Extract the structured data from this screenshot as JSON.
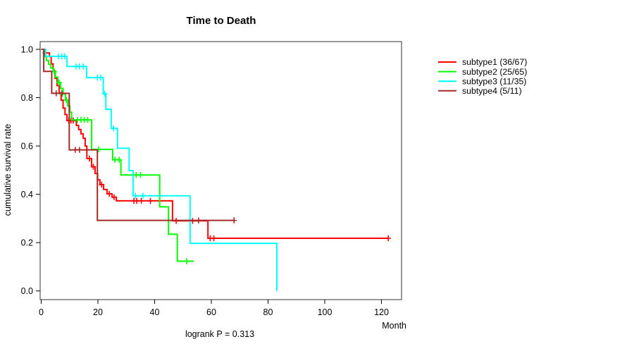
{
  "chart_data": {
    "type": "line",
    "variant": "kaplan-meier-step",
    "title": "Time to Death",
    "xlabel": "Month",
    "ylabel": "cumulative survival rate",
    "footer": "logrank P = 0.313",
    "x_ticks": [
      0,
      20,
      40,
      60,
      80,
      100,
      120
    ],
    "y_ticks": [
      "0.0",
      "0.2",
      "0.4",
      "0.6",
      "0.8",
      "1.0"
    ],
    "xlim": [
      0,
      127
    ],
    "ylim": [
      0,
      1
    ],
    "grid": false,
    "legend_position": "right-outside",
    "series": [
      {
        "name": "subtype1 (36/67)",
        "color": "#FF0000",
        "steps": [
          [
            0,
            1.0
          ],
          [
            1,
            0.985
          ],
          [
            2.9,
            0.97
          ],
          [
            3.5,
            0.94
          ],
          [
            4.2,
            0.91
          ],
          [
            4.9,
            0.88
          ],
          [
            5.6,
            0.85
          ],
          [
            6.3,
            0.82
          ],
          [
            7,
            0.79
          ],
          [
            7.7,
            0.757
          ],
          [
            8.4,
            0.73
          ],
          [
            9.1,
            0.705
          ],
          [
            12.4,
            0.685
          ],
          [
            13.2,
            0.668
          ],
          [
            14,
            0.65
          ],
          [
            14.8,
            0.632
          ],
          [
            15.5,
            0.6
          ],
          [
            16.1,
            0.548
          ],
          [
            17.8,
            0.514
          ],
          [
            19,
            0.486
          ],
          [
            19.9,
            0.46
          ],
          [
            20.7,
            0.44
          ],
          [
            22,
            0.42
          ],
          [
            23.2,
            0.402
          ],
          [
            25,
            0.388
          ],
          [
            26.5,
            0.373
          ],
          [
            46.3,
            0.29
          ],
          [
            58.8,
            0.218
          ]
        ],
        "end_time": 122.4,
        "censors": [
          [
            1.4,
            0.985
          ],
          [
            9.7,
            0.705
          ],
          [
            10.5,
            0.705
          ],
          [
            11.3,
            0.705
          ],
          [
            17,
            0.548
          ],
          [
            18.4,
            0.514
          ],
          [
            21.3,
            0.44
          ],
          [
            24,
            0.402
          ],
          [
            25.7,
            0.388
          ],
          [
            32.7,
            0.373
          ],
          [
            33.7,
            0.373
          ],
          [
            35.3,
            0.373
          ],
          [
            38.5,
            0.373
          ],
          [
            47.6,
            0.29
          ],
          [
            53.4,
            0.29
          ],
          [
            59.6,
            0.218
          ],
          [
            60.9,
            0.218
          ],
          [
            122.4,
            0.218
          ]
        ]
      },
      {
        "name": "subtype2 (25/65)",
        "color": "#00FF00",
        "steps": [
          [
            0,
            1.0
          ],
          [
            1,
            0.969
          ],
          [
            1.8,
            0.954
          ],
          [
            2.6,
            0.938
          ],
          [
            3.4,
            0.923
          ],
          [
            4.2,
            0.908
          ],
          [
            5,
            0.885
          ],
          [
            5.9,
            0.862
          ],
          [
            6.8,
            0.838
          ],
          [
            7.7,
            0.815
          ],
          [
            8.6,
            0.79
          ],
          [
            9.4,
            0.766
          ],
          [
            10.1,
            0.74
          ],
          [
            10.7,
            0.708
          ],
          [
            17.8,
            0.586
          ],
          [
            25.2,
            0.543
          ],
          [
            28.1,
            0.48
          ],
          [
            41.8,
            0.348
          ],
          [
            44.9,
            0.235
          ],
          [
            48,
            0.123
          ]
        ],
        "end_time": 53.8,
        "censors": [
          [
            4.6,
            0.908
          ],
          [
            6.3,
            0.862
          ],
          [
            7.4,
            0.815
          ],
          [
            8.9,
            0.79
          ],
          [
            12.8,
            0.708
          ],
          [
            14,
            0.708
          ],
          [
            15.2,
            0.708
          ],
          [
            16.4,
            0.708
          ],
          [
            20.2,
            0.586
          ],
          [
            26,
            0.543
          ],
          [
            27.5,
            0.543
          ],
          [
            33.5,
            0.48
          ],
          [
            35,
            0.48
          ],
          [
            51.3,
            0.123
          ]
        ]
      },
      {
        "name": "subtype3 (11/35)",
        "color": "#00FFFF",
        "steps": [
          [
            0,
            1.0
          ],
          [
            1.6,
            0.971
          ],
          [
            9.1,
            0.929
          ],
          [
            16,
            0.883
          ],
          [
            21.9,
            0.816
          ],
          [
            22.8,
            0.752
          ],
          [
            24.7,
            0.673
          ],
          [
            26.9,
            0.591
          ],
          [
            31,
            0.498
          ],
          [
            32.4,
            0.394
          ],
          [
            52.5,
            0.197
          ],
          [
            83.1,
            0.0
          ]
        ],
        "end_time": 83.1,
        "censors": [
          [
            6.1,
            0.971
          ],
          [
            7.3,
            0.971
          ],
          [
            8.3,
            0.971
          ],
          [
            12.3,
            0.929
          ],
          [
            13.5,
            0.929
          ],
          [
            14.8,
            0.929
          ],
          [
            19.8,
            0.883
          ],
          [
            21,
            0.883
          ],
          [
            22.4,
            0.816
          ],
          [
            25.5,
            0.673
          ],
          [
            33.2,
            0.394
          ],
          [
            35.9,
            0.394
          ]
        ]
      },
      {
        "name": "subtype4 (5/11)",
        "color": "#A52A2A",
        "steps": [
          [
            0,
            1.0
          ],
          [
            0.9,
            0.909
          ],
          [
            3.7,
            0.818
          ],
          [
            9.9,
            0.584
          ],
          [
            19.8,
            0.292
          ]
        ],
        "end_time": 68,
        "censors": [
          [
            5.3,
            0.818
          ],
          [
            7.3,
            0.818
          ],
          [
            12,
            0.584
          ],
          [
            13.5,
            0.584
          ],
          [
            55.5,
            0.292
          ],
          [
            68,
            0.292
          ]
        ]
      }
    ]
  }
}
